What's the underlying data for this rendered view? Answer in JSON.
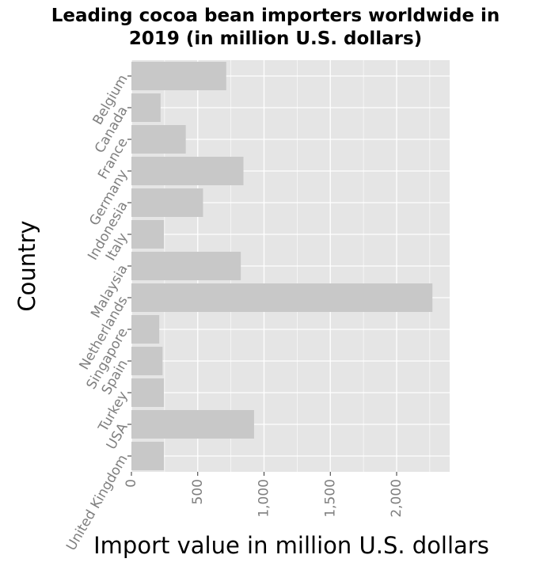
{
  "chart_data": {
    "type": "bar",
    "orientation": "horizontal",
    "title": "Leading cocoa bean importers worldwide in 2019 (in million U.S. dollars)",
    "title_lines": [
      "Leading cocoa bean importers worldwide in",
      "2019 (in million U.S. dollars)"
    ],
    "xlabel": "Import value in million U.S. dollars",
    "ylabel": "Country",
    "categories": [
      "Belgium",
      "Canada",
      "France",
      "Germany",
      "Indonesia",
      "Italy",
      "Malaysia",
      "Netherlands",
      "Singapore",
      "Spain",
      "Turkey",
      "USA",
      "United Kingdom"
    ],
    "values": [
      715,
      220,
      410,
      845,
      540,
      245,
      825,
      2270,
      210,
      235,
      245,
      925,
      245
    ],
    "xlim": [
      0,
      2400
    ],
    "xticks": [
      0,
      500,
      1000,
      1500,
      2000
    ],
    "xtick_labels": [
      "0",
      "500",
      "1,000",
      "1,500",
      "2,000"
    ],
    "grid": true,
    "colors": {
      "panel": "#e5e5e5",
      "grid": "#ffffff",
      "bar": "#c8c8c8",
      "axis_text": "#7f7f7f"
    }
  }
}
